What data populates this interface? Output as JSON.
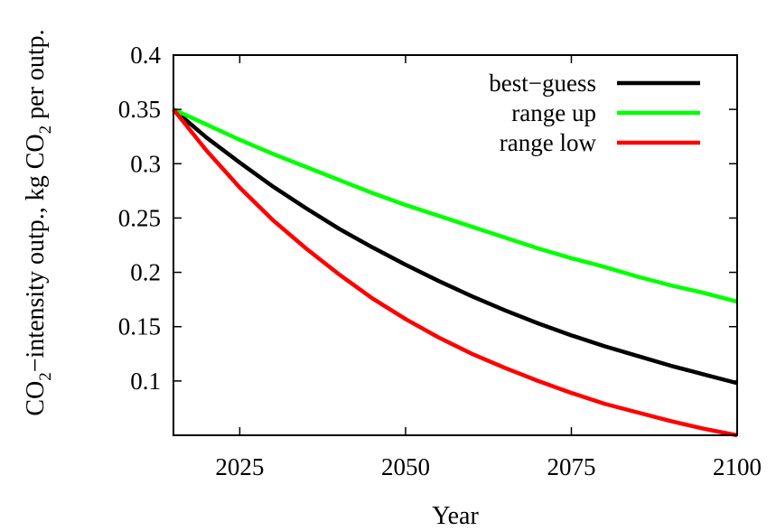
{
  "chart_data": {
    "type": "line",
    "xlabel": "Year",
    "ylabel": {
      "parts": [
        {
          "text": "CO",
          "sub": false
        },
        {
          "text": "2",
          "sub": true
        },
        {
          "text": "−intensity outp., kg CO",
          "sub": false
        },
        {
          "text": "2",
          "sub": true
        },
        {
          "text": " per outp.",
          "sub": false
        }
      ]
    },
    "xlim": [
      2015,
      2100
    ],
    "ylim": [
      0.05,
      0.4
    ],
    "xticks": [
      {
        "value": 2025,
        "label": "2025"
      },
      {
        "value": 2050,
        "label": "2050"
      },
      {
        "value": 2075,
        "label": "2075"
      },
      {
        "value": 2100,
        "label": "2100"
      }
    ],
    "yticks": [
      {
        "value": 0.1,
        "label": "0.1"
      },
      {
        "value": 0.15,
        "label": "0.15"
      },
      {
        "value": 0.2,
        "label": "0.2"
      },
      {
        "value": 0.25,
        "label": "0.25"
      },
      {
        "value": 0.3,
        "label": "0.3"
      },
      {
        "value": 0.35,
        "label": "0.35"
      },
      {
        "value": 0.4,
        "label": "0.4"
      }
    ],
    "grid": false,
    "legend": "top-right",
    "x": [
      2015,
      2020,
      2025,
      2030,
      2035,
      2040,
      2045,
      2050,
      2055,
      2060,
      2065,
      2070,
      2075,
      2080,
      2085,
      2090,
      2095,
      2100
    ],
    "series": [
      {
        "name": "best−guess",
        "color": "#000000",
        "values": [
          0.35,
          0.324,
          0.301,
          0.279,
          0.259,
          0.24,
          0.223,
          0.207,
          0.192,
          0.178,
          0.165,
          0.153,
          0.142,
          0.132,
          0.123,
          0.114,
          0.106,
          0.098
        ]
      },
      {
        "name": "range up",
        "color": "#00ff00",
        "values": [
          0.35,
          0.336,
          0.322,
          0.309,
          0.297,
          0.285,
          0.273,
          0.262,
          0.252,
          0.242,
          0.232,
          0.222,
          0.213,
          0.205,
          0.196,
          0.188,
          0.181,
          0.173
        ]
      },
      {
        "name": "range low",
        "color": "#ff0000",
        "values": [
          0.35,
          0.312,
          0.278,
          0.248,
          0.222,
          0.198,
          0.176,
          0.157,
          0.14,
          0.125,
          0.112,
          0.1,
          0.089,
          0.079,
          0.071,
          0.063,
          0.056,
          0.05
        ]
      }
    ]
  }
}
